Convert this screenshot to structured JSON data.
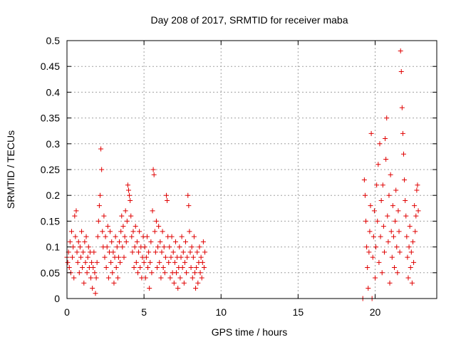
{
  "chart_data": {
    "type": "scatter",
    "title": "Day 208 of 2017, SRMTID for receiver maba",
    "xlabel": "GPS time / hours",
    "ylabel": "SRMTID / TECUs",
    "xlim": [
      0,
      24
    ],
    "ylim": [
      0,
      0.5
    ],
    "grid": true,
    "marker": "plus",
    "color": "#e00000",
    "x_ticks": [
      0,
      5,
      10,
      15,
      20
    ],
    "x_tick_labels": [
      "0",
      "5",
      "10",
      "15",
      "20"
    ],
    "y_ticks": [
      0,
      0.05,
      0.1,
      0.15,
      0.2,
      0.25,
      0.3,
      0.35,
      0.4,
      0.45,
      0.5
    ],
    "y_tick_labels": [
      "0",
      "0.05",
      "0.1",
      "0.15",
      "0.2",
      "0.25",
      "0.3",
      "0.35",
      "0.4",
      "0.45",
      "0.5"
    ],
    "series": [
      {
        "name": "SRMTID",
        "points": [
          [
            0.0,
            0.08
          ],
          [
            0.05,
            0.07
          ],
          [
            0.1,
            0.09
          ],
          [
            0.15,
            0.06
          ],
          [
            0.2,
            0.11
          ],
          [
            0.25,
            0.05
          ],
          [
            0.3,
            0.13
          ],
          [
            0.35,
            0.08
          ],
          [
            0.4,
            0.1
          ],
          [
            0.45,
            0.04
          ],
          [
            0.5,
            0.16
          ],
          [
            0.55,
            0.12
          ],
          [
            0.6,
            0.17
          ],
          [
            0.65,
            0.09
          ],
          [
            0.7,
            0.07
          ],
          [
            0.75,
            0.11
          ],
          [
            0.8,
            0.05
          ],
          [
            0.85,
            0.1
          ],
          [
            0.9,
            0.08
          ],
          [
            0.95,
            0.13
          ],
          [
            1.0,
            0.06
          ],
          [
            1.05,
            0.09
          ],
          [
            1.1,
            0.03
          ],
          [
            1.15,
            0.11
          ],
          [
            1.2,
            0.07
          ],
          [
            1.25,
            0.12
          ],
          [
            1.3,
            0.05
          ],
          [
            1.35,
            0.08
          ],
          [
            1.4,
            0.1
          ],
          [
            1.45,
            0.06
          ],
          [
            1.5,
            0.09
          ],
          [
            1.55,
            0.04
          ],
          [
            1.6,
            0.07
          ],
          [
            1.65,
            0.02
          ],
          [
            1.7,
            0.06
          ],
          [
            1.75,
            0.09
          ],
          [
            1.8,
            0.05
          ],
          [
            1.85,
            0.01
          ],
          [
            1.9,
            0.04
          ],
          [
            1.95,
            0.07
          ],
          [
            2.0,
            0.12
          ],
          [
            2.05,
            0.15
          ],
          [
            2.1,
            0.18
          ],
          [
            2.15,
            0.2
          ],
          [
            2.2,
            0.29
          ],
          [
            2.25,
            0.25
          ],
          [
            2.3,
            0.13
          ],
          [
            2.35,
            0.1
          ],
          [
            2.4,
            0.16
          ],
          [
            2.45,
            0.08
          ],
          [
            2.5,
            0.12
          ],
          [
            2.55,
            0.06
          ],
          [
            2.6,
            0.1
          ],
          [
            2.65,
            0.14
          ],
          [
            2.7,
            0.04
          ],
          [
            2.75,
            0.09
          ],
          [
            2.8,
            0.13
          ],
          [
            2.85,
            0.07
          ],
          [
            2.9,
            0.11
          ],
          [
            2.95,
            0.05
          ],
          [
            3.0,
            0.09
          ],
          [
            3.05,
            0.03
          ],
          [
            3.1,
            0.08
          ],
          [
            3.15,
            0.12
          ],
          [
            3.2,
            0.06
          ],
          [
            3.25,
            0.1
          ],
          [
            3.3,
            0.04
          ],
          [
            3.35,
            0.08
          ],
          [
            3.4,
            0.11
          ],
          [
            3.45,
            0.07
          ],
          [
            3.5,
            0.13
          ],
          [
            3.55,
            0.16
          ],
          [
            3.6,
            0.1
          ],
          [
            3.65,
            0.14
          ],
          [
            3.7,
            0.08
          ],
          [
            3.75,
            0.12
          ],
          [
            3.8,
            0.17
          ],
          [
            3.85,
            0.11
          ],
          [
            3.9,
            0.15
          ],
          [
            3.95,
            0.22
          ],
          [
            4.0,
            0.21
          ],
          [
            4.05,
            0.2
          ],
          [
            4.1,
            0.19
          ],
          [
            4.15,
            0.16
          ],
          [
            4.2,
            0.12
          ],
          [
            4.25,
            0.09
          ],
          [
            4.3,
            0.13
          ],
          [
            4.35,
            0.06
          ],
          [
            4.4,
            0.1
          ],
          [
            4.45,
            0.14
          ],
          [
            4.5,
            0.07
          ],
          [
            4.55,
            0.11
          ],
          [
            4.6,
            0.05
          ],
          [
            4.65,
            0.09
          ],
          [
            4.7,
            0.13
          ],
          [
            4.75,
            0.06
          ],
          [
            4.8,
            0.1
          ],
          [
            4.85,
            0.04
          ],
          [
            4.9,
            0.08
          ],
          [
            4.95,
            0.12
          ],
          [
            5.0,
            0.07
          ],
          [
            5.05,
            0.1
          ],
          [
            5.1,
            0.04
          ],
          [
            5.15,
            0.08
          ],
          [
            5.2,
            0.12
          ],
          [
            5.25,
            0.06
          ],
          [
            5.3,
            0.09
          ],
          [
            5.35,
            0.02
          ],
          [
            5.4,
            0.07
          ],
          [
            5.45,
            0.11
          ],
          [
            5.5,
            0.05
          ],
          [
            5.55,
            0.17
          ],
          [
            5.6,
            0.25
          ],
          [
            5.65,
            0.24
          ],
          [
            5.7,
            0.13
          ],
          [
            5.75,
            0.09
          ],
          [
            5.8,
            0.15
          ],
          [
            5.85,
            0.06
          ],
          [
            5.9,
            0.1
          ],
          [
            5.95,
            0.14
          ],
          [
            6.0,
            0.07
          ],
          [
            6.05,
            0.11
          ],
          [
            6.1,
            0.04
          ],
          [
            6.15,
            0.09
          ],
          [
            6.2,
            0.13
          ],
          [
            6.25,
            0.06
          ],
          [
            6.3,
            0.1
          ],
          [
            6.35,
            0.05
          ],
          [
            6.4,
            0.08
          ],
          [
            6.45,
            0.2
          ],
          [
            6.5,
            0.19
          ],
          [
            6.55,
            0.12
          ],
          [
            6.6,
            0.07
          ],
          [
            6.65,
            0.1
          ],
          [
            6.7,
            0.04
          ],
          [
            6.75,
            0.08
          ],
          [
            6.8,
            0.12
          ],
          [
            6.85,
            0.05
          ],
          [
            6.9,
            0.09
          ],
          [
            6.95,
            0.03
          ],
          [
            7.0,
            0.07
          ],
          [
            7.05,
            0.11
          ],
          [
            7.1,
            0.05
          ],
          [
            7.15,
            0.08
          ],
          [
            7.2,
            0.02
          ],
          [
            7.25,
            0.06
          ],
          [
            7.3,
            0.1
          ],
          [
            7.35,
            0.04
          ],
          [
            7.4,
            0.08
          ],
          [
            7.45,
            0.12
          ],
          [
            7.5,
            0.06
          ],
          [
            7.55,
            0.09
          ],
          [
            7.6,
            0.03
          ],
          [
            7.65,
            0.07
          ],
          [
            7.7,
            0.11
          ],
          [
            7.75,
            0.05
          ],
          [
            7.8,
            0.08
          ],
          [
            7.85,
            0.2
          ],
          [
            7.9,
            0.18
          ],
          [
            7.95,
            0.13
          ],
          [
            8.0,
            0.09
          ],
          [
            8.05,
            0.06
          ],
          [
            8.1,
            0.1
          ],
          [
            8.15,
            0.04
          ],
          [
            8.2,
            0.08
          ],
          [
            8.25,
            0.12
          ],
          [
            8.3,
            0.05
          ],
          [
            8.35,
            0.02
          ],
          [
            8.4,
            0.06
          ],
          [
            8.45,
            0.09
          ],
          [
            8.5,
            0.03
          ],
          [
            8.55,
            0.07
          ],
          [
            8.6,
            0.1
          ],
          [
            8.65,
            0.05
          ],
          [
            8.7,
            0.08
          ],
          [
            8.75,
            0.04
          ],
          [
            8.8,
            0.07
          ],
          [
            8.85,
            0.11
          ],
          [
            8.9,
            0.06
          ],
          [
            8.95,
            0.09
          ],
          [
            19.2,
            0.0
          ],
          [
            19.3,
            0.23
          ],
          [
            19.35,
            0.2
          ],
          [
            19.4,
            0.15
          ],
          [
            19.45,
            0.1
          ],
          [
            19.5,
            0.06
          ],
          [
            19.55,
            0.02
          ],
          [
            19.6,
            0.09
          ],
          [
            19.65,
            0.13
          ],
          [
            19.7,
            0.18
          ],
          [
            19.75,
            0.32
          ],
          [
            19.8,
            0.0
          ],
          [
            19.85,
            0.08
          ],
          [
            19.9,
            0.12
          ],
          [
            19.95,
            0.17
          ],
          [
            20.0,
            0.04
          ],
          [
            20.05,
            0.1
          ],
          [
            20.1,
            0.22
          ],
          [
            20.15,
            0.15
          ],
          [
            20.2,
            0.26
          ],
          [
            20.25,
            0.07
          ],
          [
            20.3,
            0.3
          ],
          [
            20.35,
            0.12
          ],
          [
            20.4,
            0.19
          ],
          [
            20.45,
            0.05
          ],
          [
            20.5,
            0.22
          ],
          [
            20.55,
            0.14
          ],
          [
            20.6,
            0.09
          ],
          [
            20.65,
            0.31
          ],
          [
            20.7,
            0.27
          ],
          [
            20.75,
            0.35
          ],
          [
            20.8,
            0.16
          ],
          [
            20.85,
            0.11
          ],
          [
            20.9,
            0.2
          ],
          [
            20.95,
            0.03
          ],
          [
            21.0,
            0.24
          ],
          [
            21.05,
            0.13
          ],
          [
            21.1,
            0.08
          ],
          [
            21.15,
            0.18
          ],
          [
            21.2,
            0.12
          ],
          [
            21.25,
            0.06
          ],
          [
            21.3,
            0.15
          ],
          [
            21.35,
            0.21
          ],
          [
            21.4,
            0.1
          ],
          [
            21.45,
            0.05
          ],
          [
            21.5,
            0.17
          ],
          [
            21.55,
            0.13
          ],
          [
            21.6,
            0.09
          ],
          [
            21.65,
            0.48
          ],
          [
            21.7,
            0.44
          ],
          [
            21.75,
            0.37
          ],
          [
            21.8,
            0.32
          ],
          [
            21.85,
            0.28
          ],
          [
            21.9,
            0.23
          ],
          [
            21.95,
            0.19
          ],
          [
            22.0,
            0.16
          ],
          [
            22.05,
            0.12
          ],
          [
            22.1,
            0.08
          ],
          [
            22.15,
            0.04
          ],
          [
            22.2,
            0.1
          ],
          [
            22.25,
            0.14
          ],
          [
            22.3,
            0.06
          ],
          [
            22.35,
            0.09
          ],
          [
            22.4,
            0.03
          ],
          [
            22.45,
            0.11
          ],
          [
            22.5,
            0.07
          ],
          [
            22.55,
            0.18
          ],
          [
            22.6,
            0.13
          ],
          [
            22.65,
            0.16
          ],
          [
            22.7,
            0.21
          ],
          [
            22.75,
            0.22
          ],
          [
            22.8,
            0.17
          ]
        ]
      }
    ]
  }
}
